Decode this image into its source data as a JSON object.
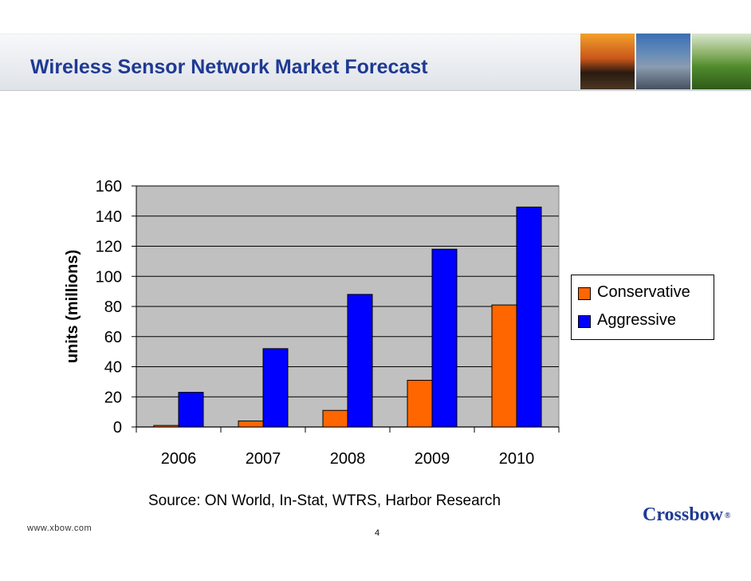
{
  "slide": {
    "title": "Wireless Sensor Network Market Forecast",
    "source": "Source: ON World, In-Stat, WTRS, Harbor Research",
    "footer_url": "www.xbow.com",
    "page_number": "4",
    "logo_text": "Crossbow",
    "logo_mark": "®"
  },
  "chart_data": {
    "type": "bar",
    "categories": [
      "2006",
      "2007",
      "2008",
      "2009",
      "2010"
    ],
    "series": [
      {
        "name": "Conservative",
        "values": [
          1,
          4,
          11,
          31,
          81
        ],
        "color": "#ff6600"
      },
      {
        "name": "Aggressive",
        "values": [
          23,
          52,
          88,
          118,
          146
        ],
        "color": "#0000ff"
      }
    ],
    "title": "",
    "xlabel": "",
    "ylabel": "units (millions)",
    "ylim": [
      0,
      160
    ],
    "yticks": [
      "0",
      "20",
      "40",
      "60",
      "80",
      "100",
      "120",
      "140",
      "160"
    ],
    "grid": true,
    "plot_background": "#c0c0c0",
    "legend_position": "right"
  }
}
